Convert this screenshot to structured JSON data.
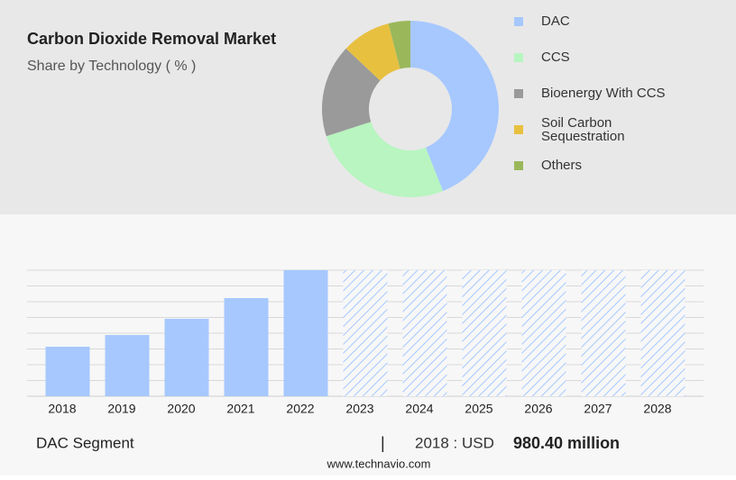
{
  "chart_data": [
    {
      "type": "pie",
      "title": "Carbon Dioxide Removal Market",
      "subtitle": "Share by Technology ( % )",
      "categories": [
        "DAC",
        "CCS",
        "Bioenergy With CCS",
        "Soil Carbon Sequestration",
        "Others"
      ],
      "values": [
        44,
        26,
        17,
        9,
        4
      ],
      "colors": [
        "#a6c8ff",
        "#b8f5c0",
        "#9a9a9a",
        "#e8c040",
        "#9ab85a"
      ]
    },
    {
      "type": "bar",
      "categories": [
        "2018",
        "2019",
        "2020",
        "2021",
        "2022",
        "2023",
        "2024",
        "2025",
        "2026",
        "2027",
        "2028"
      ],
      "values": [
        980.4,
        1212,
        1533,
        1943,
        2496,
        null,
        null,
        null,
        null,
        null,
        null
      ],
      "color": "#a6c8ff",
      "ylim": [
        0,
        2496
      ]
    }
  ],
  "footer": {
    "segment": "DAC Segment",
    "separator": "|",
    "prefix": "2018 : USD",
    "value": "980.40 million",
    "source": "www.technavio.com"
  }
}
